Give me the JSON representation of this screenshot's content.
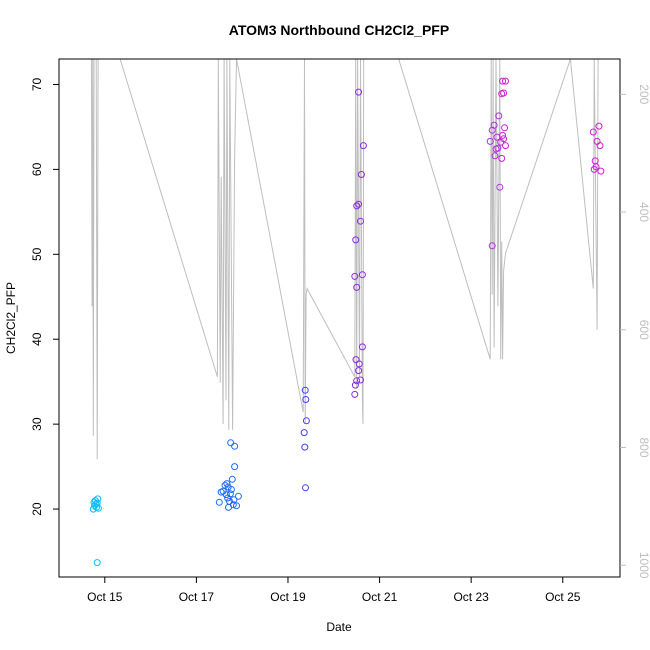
{
  "chart_data": {
    "type": "scatter",
    "title": "ATOM3 Northbound CH2Cl2_PFP",
    "xlabel": "Date",
    "ylabel": "CH2Cl2_PFP",
    "x_tick_labels": [
      "Oct 15",
      "Oct 17",
      "Oct 19",
      "Oct 21",
      "Oct 23",
      "Oct 25"
    ],
    "y_tick_labels": [
      "20",
      "30",
      "40",
      "50",
      "60",
      "70"
    ],
    "y2_tick_labels": [
      "200",
      "400",
      "600",
      "800",
      "1000"
    ],
    "xlim": [
      "2016-10-14T00:00",
      "2016-10-26T06:00"
    ],
    "ylim": [
      12,
      73
    ],
    "y2lim": [
      1020,
      140
    ],
    "grid": false,
    "legend": "none",
    "colors": {
      "axis": "#000000",
      "altitude_line": "#bebebe",
      "axis_right": "#bebebe"
    },
    "series": [
      {
        "color": "#00bfff",
        "points": [
          [
            "2016-10-14T18:00",
            20.0
          ],
          [
            "2016-10-14T18:20",
            20.8
          ],
          [
            "2016-10-14T18:40",
            20.4
          ],
          [
            "2016-10-14T19:00",
            21.0
          ],
          [
            "2016-10-14T19:20",
            20.6
          ],
          [
            "2016-10-14T19:40",
            20.2
          ],
          [
            "2016-10-14T20:00",
            20.7
          ],
          [
            "2016-10-14T20:20",
            21.2
          ],
          [
            "2016-10-14T20:40",
            20.1
          ],
          [
            "2016-10-14T20:00",
            13.7
          ]
        ]
      },
      {
        "color": "#1e6aff",
        "points": [
          [
            "2016-10-17T12:00",
            20.8
          ],
          [
            "2016-10-17T13:00",
            22.0
          ],
          [
            "2016-10-17T14:00",
            22.1
          ],
          [
            "2016-10-17T15:00",
            22.8
          ],
          [
            "2016-10-17T15:40",
            21.7
          ],
          [
            "2016-10-17T16:20",
            21.3
          ],
          [
            "2016-10-17T16:50",
            20.2
          ],
          [
            "2016-10-17T17:20",
            20.9
          ],
          [
            "2016-10-17T17:50",
            21.8
          ],
          [
            "2016-10-17T18:20",
            22.3
          ],
          [
            "2016-10-17T18:50",
            23.5
          ],
          [
            "2016-10-17T19:20",
            20.5
          ],
          [
            "2016-10-17T19:40",
            21.1
          ],
          [
            "2016-10-17T20:00",
            25.0
          ],
          [
            "2016-10-17T18:00",
            27.8
          ],
          [
            "2016-10-17T20:00",
            27.4
          ],
          [
            "2016-10-17T21:00",
            20.4
          ],
          [
            "2016-10-17T22:00",
            21.5
          ],
          [
            "2016-10-17T16:00",
            23.0
          ],
          [
            "2016-10-17T16:40",
            22.6
          ]
        ]
      },
      {
        "color": "#4040ff",
        "points": [
          [
            "2016-10-19T09:00",
            34.0
          ],
          [
            "2016-10-19T09:20",
            32.9
          ],
          [
            "2016-10-19T09:40",
            30.4
          ],
          [
            "2016-10-19T08:30",
            29.0
          ],
          [
            "2016-10-19T08:50",
            27.3
          ],
          [
            "2016-10-19T09:10",
            22.5
          ]
        ]
      },
      {
        "color": "#8a2be2",
        "points": [
          [
            "2016-10-20T11:00",
            33.5
          ],
          [
            "2016-10-20T11:20",
            34.6
          ],
          [
            "2016-10-20T11:40",
            37.6
          ],
          [
            "2016-10-20T12:00",
            35.1
          ],
          [
            "2016-10-20T13:00",
            36.3
          ],
          [
            "2016-10-20T13:20",
            37.1
          ],
          [
            "2016-10-20T14:00",
            35.2
          ],
          [
            "2016-10-20T15:00",
            39.1
          ],
          [
            "2016-10-20T11:00",
            47.4
          ],
          [
            "2016-10-20T12:00",
            46.1
          ],
          [
            "2016-10-20T15:00",
            47.6
          ],
          [
            "2016-10-20T11:30",
            51.7
          ],
          [
            "2016-10-20T12:00",
            55.7
          ],
          [
            "2016-10-20T13:00",
            55.9
          ],
          [
            "2016-10-20T14:00",
            53.9
          ],
          [
            "2016-10-20T14:30",
            59.4
          ],
          [
            "2016-10-20T15:30",
            62.8
          ],
          [
            "2016-10-20T13:00",
            69.1
          ]
        ]
      },
      {
        "color": "#b030d8",
        "points": [
          [
            "2016-10-23T11:00",
            51.0
          ],
          [
            "2016-10-23T10:00",
            63.3
          ],
          [
            "2016-10-23T11:00",
            64.6
          ],
          [
            "2016-10-23T12:00",
            65.2
          ],
          [
            "2016-10-23T12:30",
            61.6
          ],
          [
            "2016-10-23T13:00",
            62.4
          ],
          [
            "2016-10-23T13:30",
            63.8
          ],
          [
            "2016-10-23T14:00",
            62.5
          ],
          [
            "2016-10-23T14:30",
            66.3
          ],
          [
            "2016-10-23T15:00",
            57.9
          ],
          [
            "2016-10-23T15:30",
            63.2
          ]
        ]
      },
      {
        "color": "#d020d0",
        "points": [
          [
            "2016-10-23T16:00",
            61.3
          ],
          [
            "2016-10-23T16:30",
            64.0
          ],
          [
            "2016-10-23T17:00",
            63.6
          ],
          [
            "2016-10-23T17:30",
            64.9
          ],
          [
            "2016-10-23T18:00",
            62.8
          ],
          [
            "2016-10-23T16:00",
            68.9
          ],
          [
            "2016-10-23T17:00",
            69.0
          ],
          [
            "2016-10-23T16:30",
            70.4
          ],
          [
            "2016-10-23T18:00",
            70.4
          ],
          [
            "2016-10-25T16:00",
            64.4
          ],
          [
            "2016-10-25T17:00",
            61.0
          ],
          [
            "2016-10-25T17:30",
            60.3
          ],
          [
            "2016-10-25T18:00",
            63.3
          ],
          [
            "2016-10-25T19:00",
            65.1
          ],
          [
            "2016-10-25T19:30",
            62.8
          ],
          [
            "2016-10-25T20:00",
            59.8
          ],
          [
            "2016-10-25T16:30",
            60.0
          ]
        ]
      }
    ],
    "altitude_trace": [
      [
        "2016-10-14T17:00",
        130
      ],
      [
        "2016-10-14T17:20",
        560
      ],
      [
        "2016-10-14T17:40",
        130
      ],
      [
        "2016-10-14T18:00",
        780
      ],
      [
        "2016-10-14T18:20",
        130
      ],
      [
        "2016-10-14T19:30",
        130
      ],
      [
        "2016-10-14T20:00",
        820
      ],
      [
        "2016-10-14T20:30",
        130
      ],
      [
        "2016-10-15T08:00",
        130
      ],
      [
        "2016-10-17T11:00",
        680
      ],
      [
        "2016-10-17T11:30",
        120
      ],
      [
        "2016-10-17T12:30",
        690
      ],
      [
        "2016-10-17T13:00",
        340
      ],
      [
        "2016-10-17T14:00",
        760
      ],
      [
        "2016-10-17T14:30",
        120
      ],
      [
        "2016-10-17T15:30",
        720
      ],
      [
        "2016-10-17T16:00",
        120
      ],
      [
        "2016-10-17T17:00",
        770
      ],
      [
        "2016-10-17T17:30",
        120
      ],
      [
        "2016-10-17T19:00",
        770
      ],
      [
        "2016-10-17T20:00",
        310
      ],
      [
        "2016-10-17T21:00",
        130
      ],
      [
        "2016-10-19T08:00",
        740
      ],
      [
        "2016-10-19T08:40",
        120
      ],
      [
        "2016-10-19T09:00",
        760
      ],
      [
        "2016-10-19T09:30",
        540
      ],
      [
        "2016-10-19T10:00",
        530
      ],
      [
        "2016-10-20T11:00",
        680
      ],
      [
        "2016-10-20T11:30",
        120
      ],
      [
        "2016-10-20T12:00",
        700
      ],
      [
        "2016-10-20T12:30",
        120
      ],
      [
        "2016-10-20T13:30",
        680
      ],
      [
        "2016-10-20T14:00",
        120
      ],
      [
        "2016-10-20T15:00",
        720
      ],
      [
        "2016-10-20T15:20",
        760
      ],
      [
        "2016-10-20T15:40",
        120
      ],
      [
        "2016-10-21T10:00",
        130
      ],
      [
        "2016-10-23T10:00",
        650
      ],
      [
        "2016-10-23T10:30",
        120
      ],
      [
        "2016-10-23T11:00",
        540
      ],
      [
        "2016-10-23T11:30",
        120
      ],
      [
        "2016-10-23T12:00",
        630
      ],
      [
        "2016-10-23T13:00",
        120
      ],
      [
        "2016-10-23T14:00",
        560
      ],
      [
        "2016-10-23T15:00",
        120
      ],
      [
        "2016-10-23T15:30",
        650
      ],
      [
        "2016-10-23T16:00",
        450
      ],
      [
        "2016-10-23T16:30",
        650
      ],
      [
        "2016-10-23T17:00",
        500
      ],
      [
        "2016-10-23T18:00",
        470
      ],
      [
        "2016-10-25T04:00",
        130
      ],
      [
        "2016-10-25T16:00",
        530
      ],
      [
        "2016-10-25T16:30",
        120
      ],
      [
        "2016-10-25T18:00",
        600
      ],
      [
        "2016-10-25T18:30",
        120
      ]
    ]
  }
}
